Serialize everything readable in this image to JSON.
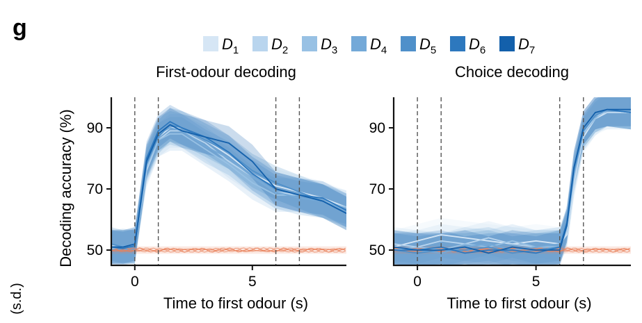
{
  "panel_letter": "g",
  "edge_text": "(s.d.)",
  "legend": {
    "items": [
      {
        "base": "D",
        "sub": "1",
        "color": "#d6e6f5"
      },
      {
        "base": "D",
        "sub": "2",
        "color": "#b9d5ee"
      },
      {
        "base": "D",
        "sub": "3",
        "color": "#98c1e4"
      },
      {
        "base": "D",
        "sub": "4",
        "color": "#74a9d8"
      },
      {
        "base": "D",
        "sub": "5",
        "color": "#4f90ca"
      },
      {
        "base": "D",
        "sub": "6",
        "color": "#2d78be"
      },
      {
        "base": "D",
        "sub": "7",
        "color": "#1360ab"
      }
    ]
  },
  "chart_data": [
    {
      "type": "line",
      "title": "First-odour decoding",
      "xlabel": "Time to first odour (s)",
      "ylabel": "Decoding accuracy (%)",
      "xlim": [
        -1,
        9
      ],
      "ylim": [
        45,
        100
      ],
      "xticks": [
        0,
        5
      ],
      "yticks": [
        50,
        70,
        90
      ],
      "vlines": [
        0,
        1,
        6,
        7
      ],
      "shuffle_color": "#e8805a",
      "shuffle_level": 50,
      "series": [
        {
          "name": "D1",
          "color": "#d6e6f5",
          "x": [
            -1,
            -0.5,
            0,
            0.5,
            1,
            1.5,
            2,
            3,
            4,
            5,
            6,
            7,
            8,
            9
          ],
          "y": [
            51,
            51,
            51.5,
            78,
            87,
            90,
            90,
            86,
            81,
            75,
            71,
            69,
            67,
            64
          ]
        },
        {
          "name": "D2",
          "color": "#b9d5ee",
          "x": [
            -1,
            -0.5,
            0,
            0.5,
            1,
            1.5,
            2,
            3,
            4,
            5,
            6,
            7,
            8,
            9
          ],
          "y": [
            51.5,
            51,
            51,
            76,
            86,
            89,
            89,
            85,
            79,
            74,
            69,
            68,
            66,
            63
          ]
        },
        {
          "name": "D3",
          "color": "#98c1e4",
          "x": [
            -1,
            -0.5,
            0,
            0.5,
            1,
            1.5,
            2,
            3,
            4,
            5,
            6,
            7,
            8,
            9
          ],
          "y": [
            50.5,
            51,
            52,
            77,
            86,
            88,
            88,
            83,
            78,
            72,
            68,
            68,
            66,
            64
          ]
        },
        {
          "name": "D4",
          "color": "#74a9d8",
          "x": [
            -1,
            -0.5,
            0,
            0.5,
            1,
            1.5,
            2,
            3,
            4,
            5,
            6,
            7,
            8,
            9
          ],
          "y": [
            51,
            51.5,
            51,
            79,
            88,
            90,
            89,
            84,
            80,
            74,
            69,
            67,
            66,
            63
          ]
        },
        {
          "name": "D5",
          "color": "#4f90ca",
          "x": [
            -1,
            -0.5,
            0,
            0.5,
            1,
            1.5,
            2,
            3,
            4,
            5,
            6,
            7,
            8,
            9
          ],
          "y": [
            52,
            51,
            51,
            78,
            87,
            91,
            90,
            86,
            82,
            76,
            72,
            69,
            66,
            62
          ]
        },
        {
          "name": "D6",
          "color": "#2d78be",
          "x": [
            -1,
            -0.5,
            0,
            0.5,
            1,
            1.5,
            2,
            3,
            4,
            5,
            6,
            7,
            8,
            9
          ],
          "y": [
            51,
            50.5,
            51.5,
            80,
            89,
            92,
            90,
            87,
            82,
            75,
            70,
            68,
            67,
            63
          ]
        },
        {
          "name": "D7",
          "color": "#1360ab",
          "x": [
            -1,
            -0.5,
            0,
            0.5,
            1,
            1.5,
            2,
            3,
            4,
            5,
            6,
            7,
            8,
            9
          ],
          "y": [
            51,
            51,
            52,
            79,
            88,
            91,
            89,
            87,
            85,
            79,
            70,
            68,
            66,
            62
          ]
        }
      ]
    },
    {
      "type": "line",
      "title": "Choice decoding",
      "xlabel": "Time to first odour (s)",
      "ylabel": "",
      "xlim": [
        -1,
        9
      ],
      "ylim": [
        45,
        100
      ],
      "xticks": [
        0,
        5
      ],
      "yticks": [
        50,
        70,
        90
      ],
      "vlines": [
        0,
        1,
        6,
        7
      ],
      "shuffle_color": "#e8805a",
      "shuffle_level": 50,
      "series": [
        {
          "name": "D1",
          "color": "#d6e6f5",
          "x": [
            -1,
            0,
            1,
            2,
            3,
            4,
            5,
            6,
            6.3,
            6.6,
            7,
            7.5,
            8,
            9
          ],
          "y": [
            51,
            53,
            55,
            54,
            53,
            52,
            53,
            52,
            55,
            72,
            87,
            93,
            95,
            95
          ]
        },
        {
          "name": "D2",
          "color": "#b9d5ee",
          "x": [
            -1,
            0,
            1,
            2,
            3,
            4,
            5,
            6,
            6.3,
            6.6,
            7,
            7.5,
            8,
            9
          ],
          "y": [
            52,
            51,
            53,
            52,
            54,
            52,
            51,
            51,
            56,
            73,
            88,
            94,
            95,
            95
          ]
        },
        {
          "name": "D3",
          "color": "#98c1e4",
          "x": [
            -1,
            0,
            1,
            2,
            3,
            4,
            5,
            6,
            6.3,
            6.6,
            7,
            7.5,
            8,
            9
          ],
          "y": [
            50,
            51,
            50,
            52,
            51,
            53,
            51,
            51,
            57,
            74,
            88,
            93,
            96,
            95
          ]
        },
        {
          "name": "D4",
          "color": "#74a9d8",
          "x": [
            -1,
            0,
            1,
            2,
            3,
            4,
            5,
            6,
            6.3,
            6.6,
            7,
            7.5,
            8,
            9
          ],
          "y": [
            51,
            50,
            49,
            51,
            52,
            50,
            51,
            52,
            58,
            75,
            89,
            94,
            96,
            95
          ]
        },
        {
          "name": "D5",
          "color": "#4f90ca",
          "x": [
            -1,
            0,
            1,
            2,
            3,
            4,
            5,
            6,
            6.3,
            6.6,
            7,
            7.5,
            8,
            9
          ],
          "y": [
            50,
            49,
            50,
            50,
            51,
            49,
            50,
            51,
            58,
            76,
            89,
            94,
            96,
            95
          ]
        },
        {
          "name": "D6",
          "color": "#2d78be",
          "x": [
            -1,
            0,
            1,
            2,
            3,
            4,
            5,
            6,
            6.3,
            6.6,
            7,
            7.5,
            8,
            9
          ],
          "y": [
            50,
            50,
            51,
            49,
            50,
            50,
            49,
            51,
            59,
            77,
            90,
            95,
            96,
            95
          ]
        },
        {
          "name": "D7",
          "color": "#1360ab",
          "x": [
            -1,
            0,
            1,
            2,
            3,
            4,
            5,
            6,
            6.3,
            6.6,
            7,
            7.5,
            8,
            9
          ],
          "y": [
            51,
            50,
            50,
            51,
            49,
            51,
            50,
            50,
            58,
            77,
            90,
            95,
            96,
            96
          ]
        }
      ]
    }
  ]
}
